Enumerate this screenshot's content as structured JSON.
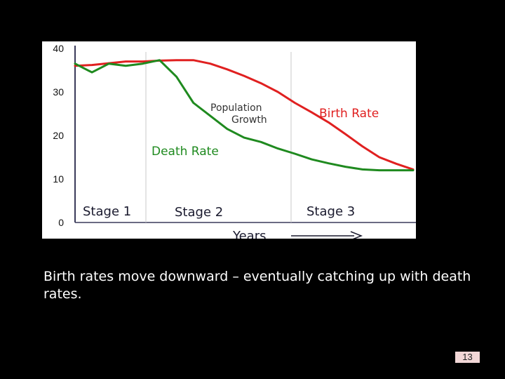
{
  "chart_data": {
    "type": "line",
    "x": [
      0,
      5,
      10,
      15,
      20,
      25,
      30,
      35,
      40,
      45,
      50,
      55,
      60,
      65,
      70,
      75,
      80,
      85,
      90,
      95,
      100
    ],
    "series": [
      {
        "name": "Birth Rate",
        "color": "#e02020",
        "values": [
          36,
          36.2,
          36.6,
          37,
          37,
          37.2,
          37.3,
          37.3,
          36.5,
          35.2,
          33.7,
          32,
          30,
          27.5,
          25.3,
          23,
          20.3,
          17.5,
          15,
          13.5,
          12.2
        ]
      },
      {
        "name": "Death Rate",
        "color": "#1f8a1f",
        "values": [
          36.5,
          34.5,
          36.5,
          36,
          36.5,
          37.3,
          33.5,
          27.5,
          24.5,
          21.5,
          19.5,
          18.5,
          17,
          15.8,
          14.5,
          13.6,
          12.8,
          12.2,
          12,
          12,
          12
        ]
      }
    ],
    "ylim": [
      0,
      40
    ],
    "yticks": [
      "0",
      "10",
      "20",
      "30",
      "40"
    ],
    "xlabel": "Years",
    "annotations": [
      "Population Growth"
    ],
    "stages": [
      "Stage 1",
      "Stage 2",
      "Stage 3"
    ],
    "grid": "vertical dividers between stages"
  },
  "caption": "Birth rates move downward – eventually catching up with death rates.",
  "slide_number": "13"
}
